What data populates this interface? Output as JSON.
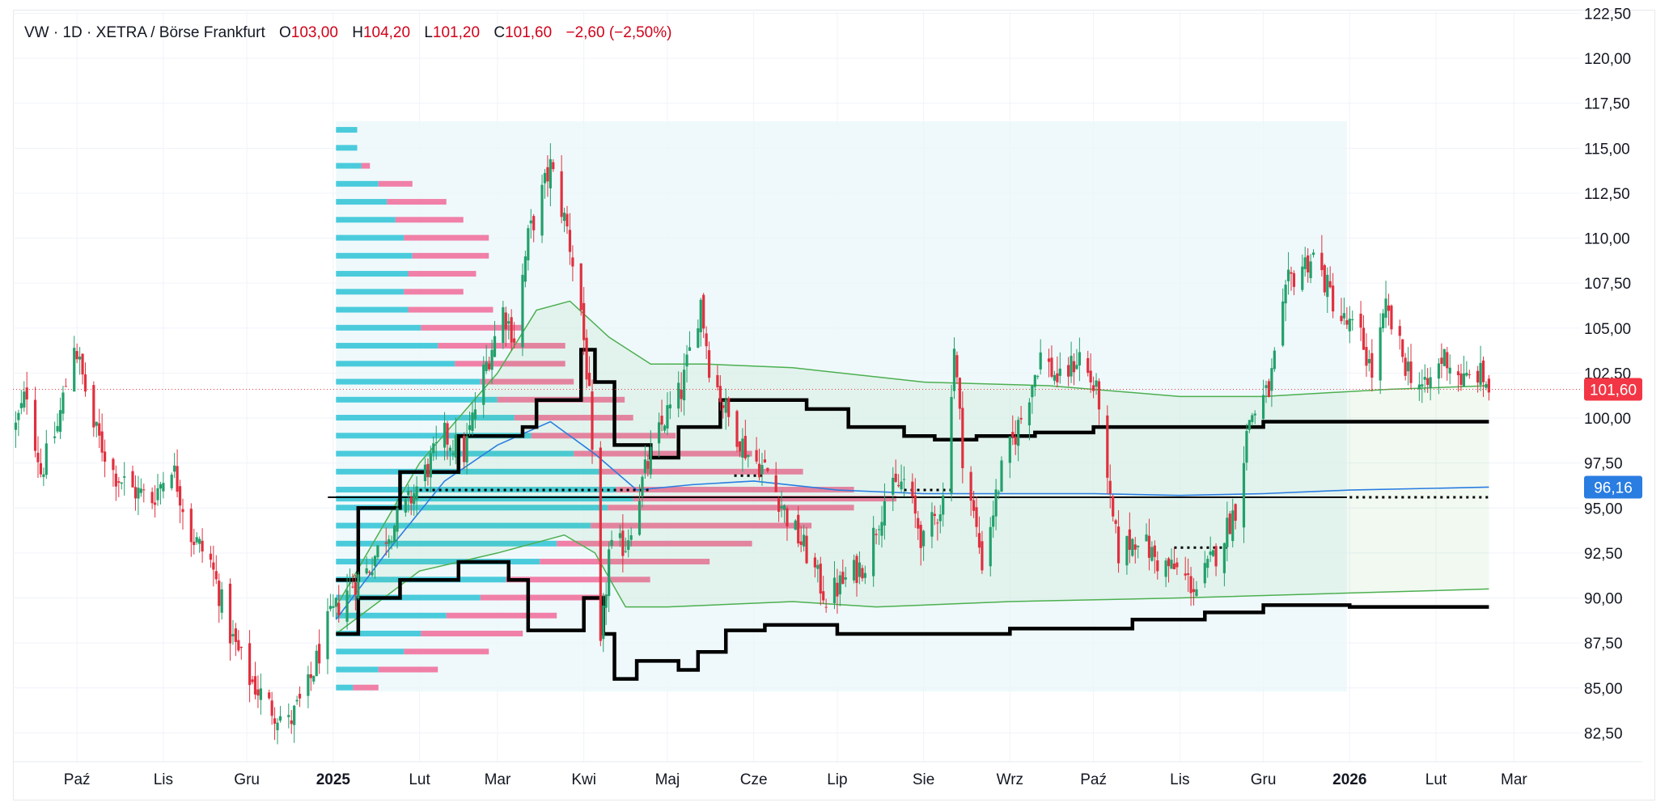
{
  "legend": {
    "symbol": "VW · 1D · XETRA / Börse Frankfurt",
    "open_label": "O",
    "open": "103,00",
    "high_label": "H",
    "high": "104,20",
    "low_label": "L",
    "low": "101,20",
    "close_label": "C",
    "close": "101,60",
    "change": "−2,60 (−2,50%)"
  },
  "price_badges": {
    "last_price": "101,60",
    "indicator_value": "96,16"
  },
  "colors": {
    "up": "#22a06b",
    "down": "#e0303f",
    "volume_up": "#2dc3d6",
    "volume_down": "#f06292",
    "ma_blue": "#2a7de1",
    "band_green": "#4caf50",
    "last_price_badge": "#f23645",
    "indicator_badge": "#2a7de1",
    "profile_bg": "#e8f7fa"
  },
  "chart_data": {
    "type": "candlestick",
    "symbol": "VW",
    "interval": "1D",
    "exchange": "XETRA / Börse Frankfurt",
    "x_axis": {
      "type": "date",
      "range": [
        "2024-09-08",
        "2026-03-25"
      ],
      "ticks": [
        {
          "date": "2024-10-01",
          "label": "Paź",
          "bold": false
        },
        {
          "date": "2024-11-01",
          "label": "Lis",
          "bold": false
        },
        {
          "date": "2024-12-01",
          "label": "Gru",
          "bold": false
        },
        {
          "date": "2025-01-01",
          "label": "2025",
          "bold": true
        },
        {
          "date": "2025-02-01",
          "label": "Lut",
          "bold": false
        },
        {
          "date": "2025-03-01",
          "label": "Mar",
          "bold": false
        },
        {
          "date": "2025-04-01",
          "label": "Kwi",
          "bold": false
        },
        {
          "date": "2025-05-01",
          "label": "Maj",
          "bold": false
        },
        {
          "date": "2025-06-01",
          "label": "Cze",
          "bold": false
        },
        {
          "date": "2025-07-01",
          "label": "Lip",
          "bold": false
        },
        {
          "date": "2025-08-01",
          "label": "Sie",
          "bold": false
        },
        {
          "date": "2025-09-01",
          "label": "Wrz",
          "bold": false
        },
        {
          "date": "2025-10-01",
          "label": "Paź",
          "bold": false
        },
        {
          "date": "2025-11-01",
          "label": "Lis",
          "bold": false
        },
        {
          "date": "2025-12-01",
          "label": "Gru",
          "bold": false
        },
        {
          "date": "2026-01-01",
          "label": "2026",
          "bold": true
        },
        {
          "date": "2026-02-01",
          "label": "Lut",
          "bold": false
        },
        {
          "date": "2026-03-01",
          "label": "Mar",
          "bold": false
        }
      ]
    },
    "y_axis": {
      "position": "right",
      "range": [
        80.9,
        122.7
      ],
      "ticks": [
        82.5,
        85,
        87.5,
        90,
        92.5,
        95,
        97.5,
        100,
        102.5,
        105,
        107.5,
        110,
        112.5,
        115,
        117.5,
        120,
        122.5
      ],
      "tick_labels": [
        "82,50",
        "85,00",
        "87,50",
        "90,00",
        "92,50",
        "95,00",
        "97,50",
        "100,00",
        "102,50",
        "105,00",
        "107,50",
        "110,00",
        "112,50",
        "115,00",
        "117,50",
        "120,00",
        "122,50"
      ]
    },
    "grid": true,
    "price_path": [
      [
        "2024-09-09",
        99.5
      ],
      [
        "2024-09-13",
        101.5
      ],
      [
        "2024-09-18",
        97.0
      ],
      [
        "2024-09-24",
        99.5
      ],
      [
        "2024-09-30",
        104.3
      ],
      [
        "2024-10-07",
        99.5
      ],
      [
        "2024-10-14",
        97.0
      ],
      [
        "2024-10-21",
        96.0
      ],
      [
        "2024-10-28",
        95.5
      ],
      [
        "2024-11-04",
        97.5
      ],
      [
        "2024-11-11",
        93.5
      ],
      [
        "2024-11-18",
        92.0
      ],
      [
        "2024-11-25",
        88.0
      ],
      [
        "2024-12-02",
        85.5
      ],
      [
        "2024-12-09",
        84.0
      ],
      [
        "2024-12-16",
        83.0
      ],
      [
        "2024-12-23",
        85.0
      ],
      [
        "2024-12-30",
        88.5
      ],
      [
        "2025-01-06",
        90.5
      ],
      [
        "2025-01-13",
        91.5
      ],
      [
        "2025-01-20",
        93.5
      ],
      [
        "2025-01-27",
        95.0
      ],
      [
        "2025-02-03",
        97.0
      ],
      [
        "2025-02-10",
        99.0
      ],
      [
        "2025-02-17",
        98.0
      ],
      [
        "2025-02-24",
        102.5
      ],
      [
        "2025-03-03",
        106.0
      ],
      [
        "2025-03-07",
        104.5
      ],
      [
        "2025-03-12",
        110.0
      ],
      [
        "2025-03-17",
        112.5
      ],
      [
        "2025-03-20",
        114.0
      ],
      [
        "2025-03-26",
        110.5
      ],
      [
        "2025-03-31",
        106.0
      ],
      [
        "2025-04-03",
        101.0
      ],
      [
        "2025-04-07",
        87.0
      ],
      [
        "2025-04-10",
        92.5
      ],
      [
        "2025-04-16",
        93.0
      ],
      [
        "2025-04-23",
        97.0
      ],
      [
        "2025-04-30",
        100.0
      ],
      [
        "2025-05-06",
        101.5
      ],
      [
        "2025-05-13",
        106.5
      ],
      [
        "2025-05-16",
        103.0
      ],
      [
        "2025-05-23",
        100.0
      ],
      [
        "2025-05-30",
        98.0
      ],
      [
        "2025-06-06",
        97.0
      ],
      [
        "2025-06-13",
        94.5
      ],
      [
        "2025-06-20",
        92.5
      ],
      [
        "2025-06-27",
        90.0
      ],
      [
        "2025-07-04",
        91.0
      ],
      [
        "2025-07-11",
        92.0
      ],
      [
        "2025-07-18",
        95.5
      ],
      [
        "2025-07-25",
        96.5
      ],
      [
        "2025-08-01",
        93.0
      ],
      [
        "2025-08-08",
        95.5
      ],
      [
        "2025-08-12",
        104.0
      ],
      [
        "2025-08-15",
        98.0
      ],
      [
        "2025-08-22",
        92.0
      ],
      [
        "2025-08-29",
        97.0
      ],
      [
        "2025-09-05",
        100.0
      ],
      [
        "2025-09-12",
        103.5
      ],
      [
        "2025-09-19",
        102.0
      ],
      [
        "2025-09-26",
        103.5
      ],
      [
        "2025-10-03",
        101.0
      ],
      [
        "2025-10-06",
        96.0
      ],
      [
        "2025-10-10",
        92.5
      ],
      [
        "2025-10-17",
        93.5
      ],
      [
        "2025-10-24",
        92.0
      ],
      [
        "2025-10-31",
        91.5
      ],
      [
        "2025-11-07",
        90.5
      ],
      [
        "2025-11-14",
        92.5
      ],
      [
        "2025-11-21",
        95.0
      ],
      [
        "2025-11-26",
        100.0
      ],
      [
        "2025-12-03",
        101.5
      ],
      [
        "2025-12-10",
        107.5
      ],
      [
        "2025-12-15",
        108.5
      ],
      [
        "2025-12-19",
        109.0
      ],
      [
        "2025-12-29",
        105.5
      ],
      [
        "2026-01-05",
        104.5
      ],
      [
        "2026-01-09",
        102.5
      ],
      [
        "2026-01-14",
        106.0
      ],
      [
        "2026-01-21",
        103.0
      ],
      [
        "2026-01-28",
        101.5
      ],
      [
        "2026-02-04",
        103.5
      ],
      [
        "2026-02-11",
        102.0
      ],
      [
        "2026-02-16",
        102.5
      ],
      [
        "2026-02-19",
        102.0
      ],
      [
        "2026-02-20",
        101.6
      ]
    ],
    "last_candle": {
      "open": 103.0,
      "high": 104.2,
      "low": 101.2,
      "close": 101.6,
      "change": -2.6,
      "change_pct": -2.5
    },
    "last_price_line": 101.6,
    "moving_average": {
      "color": "#2a7de1",
      "points": [
        [
          "2025-01-02",
          88.8
        ],
        [
          "2025-01-20",
          92.5
        ],
        [
          "2025-02-10",
          96.5
        ],
        [
          "2025-03-01",
          98.5
        ],
        [
          "2025-03-20",
          99.8
        ],
        [
          "2025-04-05",
          98.0
        ],
        [
          "2025-04-20",
          96.0
        ],
        [
          "2025-05-10",
          96.3
        ],
        [
          "2025-06-01",
          96.5
        ],
        [
          "2025-07-01",
          96.0
        ],
        [
          "2025-08-01",
          95.8
        ],
        [
          "2025-09-01",
          95.8
        ],
        [
          "2025-10-01",
          95.8
        ],
        [
          "2025-11-01",
          95.7
        ],
        [
          "2025-12-01",
          95.8
        ],
        [
          "2026-01-01",
          96.0
        ],
        [
          "2026-02-20",
          96.16
        ]
      ]
    },
    "envelope": {
      "color": "#4caf50",
      "upper": [
        [
          "2025-01-02",
          89.5
        ],
        [
          "2025-02-01",
          97.5
        ],
        [
          "2025-03-01",
          102.5
        ],
        [
          "2025-03-15",
          106.0
        ],
        [
          "2025-03-27",
          106.5
        ],
        [
          "2025-04-10",
          104.5
        ],
        [
          "2025-04-25",
          103.0
        ],
        [
          "2025-05-15",
          103.0
        ],
        [
          "2025-06-15",
          102.8
        ],
        [
          "2025-08-01",
          102.0
        ],
        [
          "2025-09-15",
          101.8
        ],
        [
          "2025-11-01",
          101.2
        ],
        [
          "2025-12-01",
          101.2
        ],
        [
          "2026-01-15",
          101.6
        ],
        [
          "2026-02-20",
          101.8
        ]
      ],
      "lower": [
        [
          "2025-01-02",
          88.0
        ],
        [
          "2025-02-01",
          91.5
        ],
        [
          "2025-03-01",
          92.5
        ],
        [
          "2025-03-25",
          93.5
        ],
        [
          "2025-04-05",
          92.5
        ],
        [
          "2025-04-16",
          89.5
        ],
        [
          "2025-05-01",
          89.5
        ],
        [
          "2025-06-15",
          89.8
        ],
        [
          "2025-07-15",
          89.5
        ],
        [
          "2025-09-01",
          89.8
        ],
        [
          "2025-11-01",
          90.0
        ],
        [
          "2025-12-15",
          90.2
        ],
        [
          "2026-02-20",
          90.5
        ]
      ]
    },
    "step_upper": [
      [
        "2025-01-02",
        91.0
      ],
      [
        "2025-01-10",
        95.0
      ],
      [
        "2025-01-25",
        97.0
      ],
      [
        "2025-02-15",
        99.0
      ],
      [
        "2025-03-10",
        99.5
      ],
      [
        "2025-03-15",
        101.0
      ],
      [
        "2025-03-31",
        103.8
      ],
      [
        "2025-04-05",
        102.0
      ],
      [
        "2025-04-12",
        98.5
      ],
      [
        "2025-04-25",
        97.8
      ],
      [
        "2025-05-05",
        99.5
      ],
      [
        "2025-05-20",
        101.0
      ],
      [
        "2025-06-20",
        100.5
      ],
      [
        "2025-07-05",
        99.5
      ],
      [
        "2025-07-25",
        99.0
      ],
      [
        "2025-08-05",
        98.8
      ],
      [
        "2025-08-20",
        99.0
      ],
      [
        "2025-09-10",
        99.2
      ],
      [
        "2025-10-01",
        99.5
      ],
      [
        "2025-12-01",
        99.8
      ],
      [
        "2026-02-20",
        99.8
      ]
    ],
    "step_lower": [
      [
        "2025-01-02",
        88.0
      ],
      [
        "2025-01-10",
        90.0
      ],
      [
        "2025-01-25",
        91.0
      ],
      [
        "2025-02-15",
        92.0
      ],
      [
        "2025-03-05",
        91.0
      ],
      [
        "2025-03-12",
        88.2
      ],
      [
        "2025-03-31",
        88.2
      ],
      [
        "2025-04-01",
        90.0
      ],
      [
        "2025-04-08",
        88.0
      ],
      [
        "2025-04-12",
        85.5
      ],
      [
        "2025-04-20",
        86.5
      ],
      [
        "2025-05-05",
        86.0
      ],
      [
        "2025-05-12",
        87.0
      ],
      [
        "2025-05-22",
        88.2
      ],
      [
        "2025-06-05",
        88.5
      ],
      [
        "2025-07-01",
        88.0
      ],
      [
        "2025-08-10",
        88.0
      ],
      [
        "2025-09-01",
        88.3
      ],
      [
        "2025-10-01",
        88.3
      ],
      [
        "2025-10-15",
        88.8
      ],
      [
        "2025-11-10",
        89.2
      ],
      [
        "2025-12-01",
        89.6
      ],
      [
        "2026-01-01",
        89.5
      ],
      [
        "2026-02-20",
        89.5
      ]
    ],
    "poc_line": 95.6,
    "volume_profile": {
      "period": [
        "2025-01-02",
        "2025-12-31"
      ],
      "price_range": [
        84.8,
        116.5
      ],
      "value_area_colors": [
        "#2dc3d6",
        "#f06292"
      ],
      "rows": [
        [
          116.0,
          0.05,
          0.0
        ],
        [
          115.0,
          0.05,
          0.0
        ],
        [
          114.0,
          0.06,
          0.02
        ],
        [
          113.0,
          0.1,
          0.08
        ],
        [
          112.0,
          0.12,
          0.14
        ],
        [
          111.0,
          0.14,
          0.16
        ],
        [
          110.0,
          0.16,
          0.2
        ],
        [
          109.0,
          0.18,
          0.18
        ],
        [
          108.0,
          0.17,
          0.16
        ],
        [
          107.0,
          0.16,
          0.14
        ],
        [
          106.0,
          0.17,
          0.2
        ],
        [
          105.0,
          0.2,
          0.24
        ],
        [
          104.0,
          0.24,
          0.3
        ],
        [
          103.0,
          0.28,
          0.26
        ],
        [
          102.0,
          0.34,
          0.22
        ],
        [
          101.0,
          0.38,
          0.3
        ],
        [
          100.0,
          0.42,
          0.28
        ],
        [
          99.0,
          0.46,
          0.34
        ],
        [
          98.0,
          0.56,
          0.42
        ],
        [
          97.0,
          0.62,
          0.48
        ],
        [
          96.0,
          0.66,
          0.56
        ],
        [
          95.5,
          0.7,
          0.62
        ],
        [
          95.0,
          0.64,
          0.58
        ],
        [
          94.0,
          0.6,
          0.52
        ],
        [
          93.0,
          0.52,
          0.46
        ],
        [
          92.0,
          0.48,
          0.4
        ],
        [
          91.0,
          0.4,
          0.34
        ],
        [
          90.0,
          0.34,
          0.3
        ],
        [
          89.0,
          0.26,
          0.26
        ],
        [
          88.0,
          0.2,
          0.24
        ],
        [
          87.0,
          0.16,
          0.2
        ],
        [
          86.0,
          0.1,
          0.14
        ],
        [
          85.0,
          0.04,
          0.06
        ]
      ]
    },
    "dotted_levels": [
      {
        "from": "2025-02-01",
        "to": "2025-04-25",
        "value": 96.0
      },
      {
        "from": "2025-05-25",
        "to": "2025-06-05",
        "value": 96.8
      },
      {
        "from": "2025-07-25",
        "to": "2025-08-12",
        "value": 96.0
      },
      {
        "from": "2025-10-30",
        "to": "2025-11-18",
        "value": 92.8
      },
      {
        "from": "2026-01-01",
        "to": "2026-02-20",
        "value": 95.6
      }
    ]
  }
}
